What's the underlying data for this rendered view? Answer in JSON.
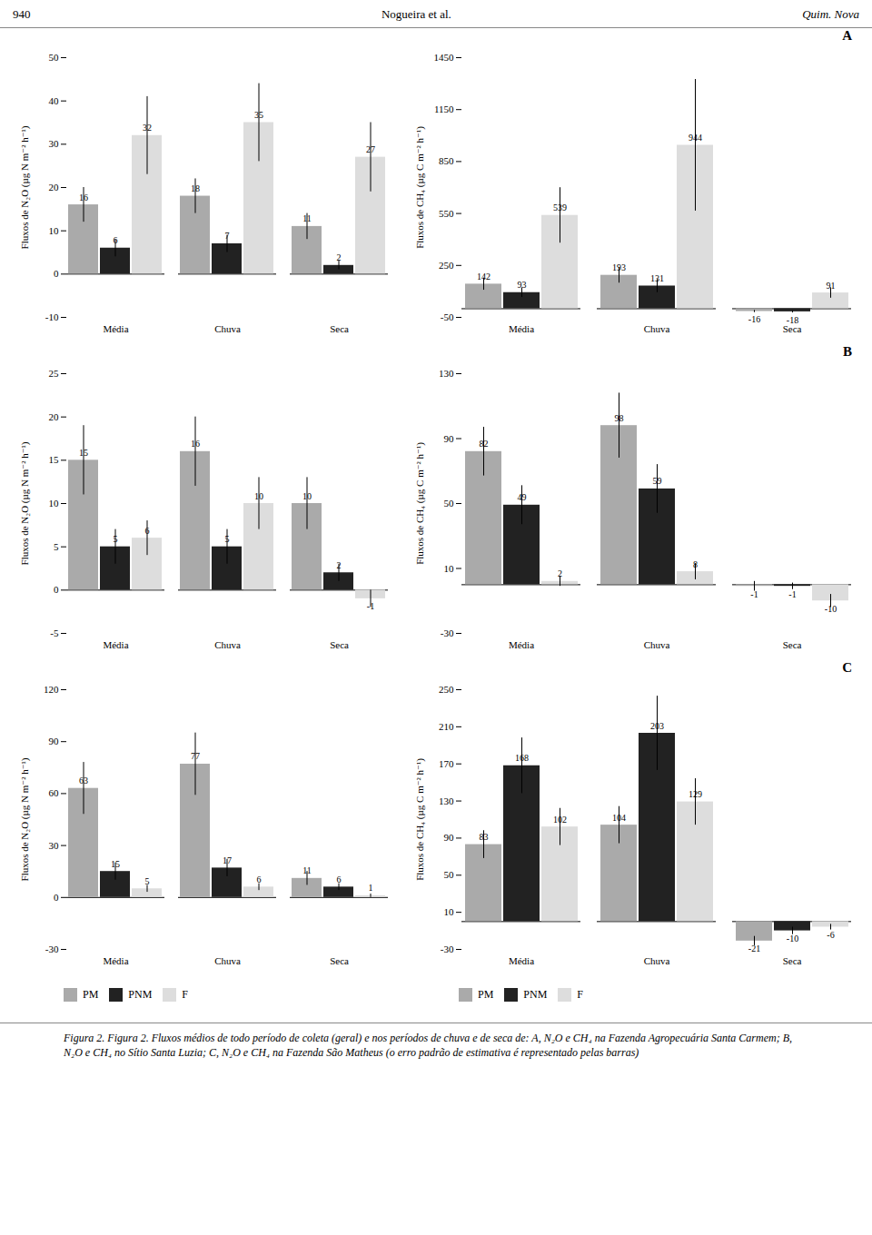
{
  "annotations": [
    "940",
    "Nogueira et al.",
    "Quim. Nova"
  ],
  "caption": [
    "Figura 2. Figura 2. Fluxos médios de todo período de coleta (geral) e nos períodos de chuva e de seca de: A, N₂O e CH₄ na Fazenda Agropecuária Santa Carmem; B,",
    "N₂O e CH₄ no Sítio Santa Luzia; C, N₂O e CH₄ na Fazenda São Matheus (o erro padrão de estimativa é representado pelas barras)"
  ],
  "chart_data": [
    {
      "type": "bar",
      "ylabel": "Fluxos de N₂O (µg N m⁻² h⁻¹)",
      "categories": [
        "Média",
        "Chuva",
        "Seca"
      ],
      "series": [
        {
          "name": "PM",
          "color": "#aaaaaa",
          "values": [
            16,
            18,
            11
          ],
          "errors": [
            4,
            4,
            3
          ]
        },
        {
          "name": "PNM",
          "color": "#222222",
          "values": [
            6,
            7,
            2
          ],
          "errors": [
            2,
            2,
            1
          ]
        },
        {
          "name": "F",
          "color": "#dddddd",
          "values": [
            32,
            35,
            27
          ],
          "errors": [
            9,
            9,
            8
          ]
        }
      ],
      "ylim": [
        -10,
        50
      ],
      "yticks": [
        -10,
        0,
        10,
        20,
        30,
        40,
        50
      ],
      "data_labels": true
    },
    {
      "type": "bar",
      "title": "A",
      "ylabel": "Fluxos de CH₄ (µg C m⁻² h⁻¹)",
      "categories": [
        "Média",
        "Chuva",
        "Seca"
      ],
      "series": [
        {
          "name": "PM",
          "color": "#aaaaaa",
          "values": [
            142,
            193,
            -16
          ],
          "errors": [
            35,
            45,
            6
          ]
        },
        {
          "name": "PNM",
          "color": "#222222",
          "values": [
            93,
            131,
            -18
          ],
          "errors": [
            28,
            38,
            6
          ]
        },
        {
          "name": "F",
          "color": "#dddddd",
          "values": [
            539,
            944,
            91
          ],
          "errors": [
            160,
            380,
            30
          ]
        }
      ],
      "ylim": [
        -50,
        1450
      ],
      "yticks": [
        -50,
        250,
        550,
        850,
        1150,
        1450
      ],
      "data_labels": true
    },
    {
      "type": "bar",
      "ylabel": "Fluxos de N₂O (µg N m⁻² h⁻¹)",
      "categories": [
        "Média",
        "Chuva",
        "Seca"
      ],
      "series": [
        {
          "name": "PM",
          "color": "#aaaaaa",
          "values": [
            15,
            16,
            10
          ],
          "errors": [
            4,
            4,
            3
          ]
        },
        {
          "name": "PNM",
          "color": "#222222",
          "values": [
            5,
            5,
            2
          ],
          "errors": [
            2,
            2,
            1
          ]
        },
        {
          "name": "F",
          "color": "#dddddd",
          "values": [
            6,
            10,
            -1
          ],
          "errors": [
            2,
            3,
            1
          ]
        }
      ],
      "ylim": [
        -5,
        25
      ],
      "yticks": [
        -5,
        0,
        5,
        10,
        15,
        20,
        25
      ],
      "data_labels": true
    },
    {
      "type": "bar",
      "title": "B",
      "ylabel": "Fluxos de CH₄ (µg C m⁻² h⁻¹)",
      "categories": [
        "Média",
        "Chuva",
        "Seca"
      ],
      "series": [
        {
          "name": "PM",
          "color": "#aaaaaa",
          "values": [
            82,
            98,
            -1
          ],
          "errors": [
            15,
            20,
            3
          ]
        },
        {
          "name": "PNM",
          "color": "#222222",
          "values": [
            49,
            59,
            -1
          ],
          "errors": [
            12,
            15,
            2
          ]
        },
        {
          "name": "F",
          "color": "#dddddd",
          "values": [
            2,
            8,
            -10
          ],
          "errors": [
            3,
            5,
            4
          ]
        }
      ],
      "ylim": [
        -30,
        130
      ],
      "yticks": [
        -30,
        10,
        50,
        90,
        130
      ],
      "data_labels": true
    },
    {
      "type": "bar",
      "ylabel": "Fluxos de N₂O (µg N m⁻² h⁻¹)",
      "categories": [
        "Média",
        "Chuva",
        "Seca"
      ],
      "series": [
        {
          "name": "PM",
          "color": "#aaaaaa",
          "values": [
            63,
            77,
            11
          ],
          "errors": [
            15,
            18,
            4
          ]
        },
        {
          "name": "PNM",
          "color": "#222222",
          "values": [
            15,
            17,
            6
          ],
          "errors": [
            5,
            5,
            2
          ]
        },
        {
          "name": "F",
          "color": "#dddddd",
          "values": [
            5,
            6,
            1
          ],
          "errors": [
            2,
            2,
            1
          ]
        }
      ],
      "ylim": [
        -30,
        120
      ],
      "yticks": [
        -30,
        0,
        30,
        60,
        90,
        120
      ],
      "data_labels": true,
      "legend": "bottom"
    },
    {
      "type": "bar",
      "title": "C",
      "ylabel": "Fluxos de CH₄ (µg C m⁻² h⁻¹)",
      "categories": [
        "Média",
        "Chuva",
        "Seca"
      ],
      "series": [
        {
          "name": "PM",
          "color": "#aaaaaa",
          "values": [
            83,
            104,
            -21
          ],
          "errors": [
            15,
            20,
            5
          ]
        },
        {
          "name": "PNM",
          "color": "#222222",
          "values": [
            168,
            203,
            -10
          ],
          "errors": [
            30,
            40,
            4
          ]
        },
        {
          "name": "F",
          "color": "#dddddd",
          "values": [
            102,
            129,
            -6
          ],
          "errors": [
            20,
            25,
            3
          ]
        }
      ],
      "ylim": [
        -30,
        250
      ],
      "yticks": [
        -30,
        10,
        50,
        90,
        130,
        170,
        210,
        250
      ],
      "data_labels": true,
      "legend": "bottom"
    }
  ]
}
